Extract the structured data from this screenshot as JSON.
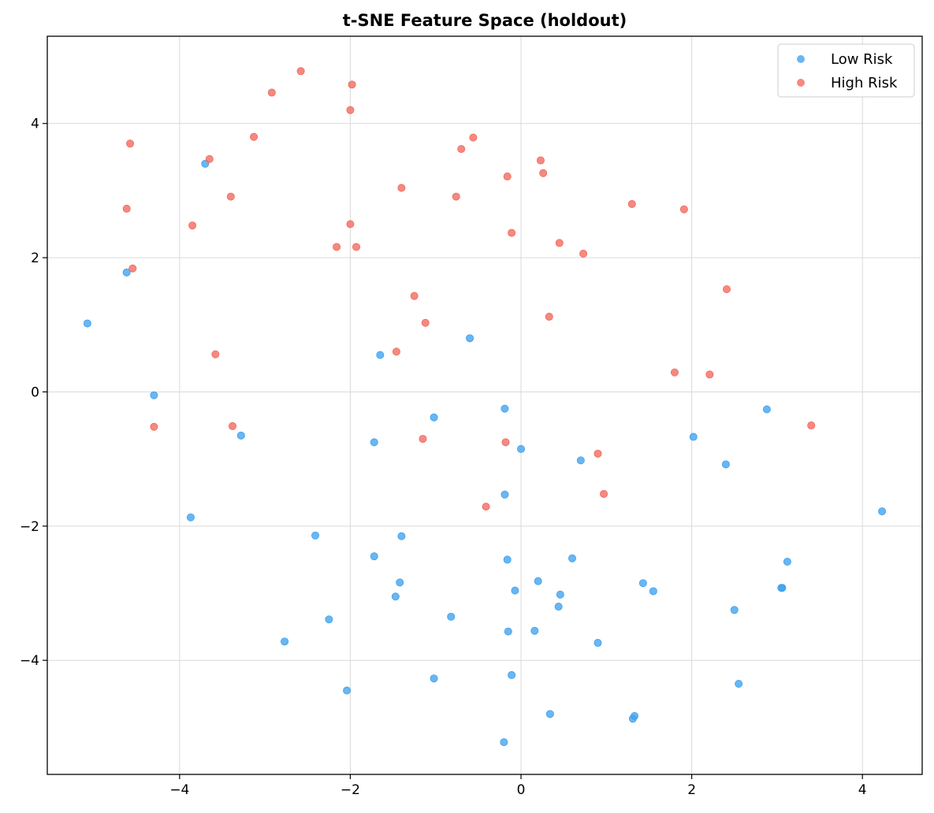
{
  "chart_data": {
    "type": "scatter",
    "title": "t-SNE Feature Space (holdout)",
    "xlabel": "",
    "ylabel": "",
    "xlim": [
      -5.55,
      4.7
    ],
    "ylim": [
      -5.7,
      5.3
    ],
    "xticks": [
      -4,
      -2,
      0,
      2,
      4
    ],
    "yticks": [
      -4,
      -2,
      0,
      2,
      4
    ],
    "grid": true,
    "legend": "top-right",
    "series": [
      {
        "name": "Low Risk",
        "color": "#3fa2ee",
        "points": [
          [
            -3.7,
            3.4
          ],
          [
            -4.62,
            1.78
          ],
          [
            -5.08,
            1.02
          ],
          [
            -4.3,
            -0.05
          ],
          [
            -3.28,
            -0.65
          ],
          [
            -1.65,
            0.55
          ],
          [
            -0.6,
            0.8
          ],
          [
            -1.02,
            -0.38
          ],
          [
            -1.72,
            -0.75
          ],
          [
            -0.19,
            -0.25
          ],
          [
            0.0,
            -0.85
          ],
          [
            0.7,
            -1.02
          ],
          [
            -0.19,
            -1.53
          ],
          [
            -3.87,
            -1.87
          ],
          [
            -2.41,
            -2.14
          ],
          [
            -1.4,
            -2.15
          ],
          [
            -1.72,
            -2.45
          ],
          [
            -0.16,
            -2.5
          ],
          [
            0.6,
            -2.48
          ],
          [
            -1.42,
            -2.84
          ],
          [
            0.2,
            -2.82
          ],
          [
            -0.07,
            -2.96
          ],
          [
            0.46,
            -3.02
          ],
          [
            -1.47,
            -3.05
          ],
          [
            0.44,
            -3.2
          ],
          [
            -2.25,
            -3.39
          ],
          [
            -0.82,
            -3.35
          ],
          [
            -0.15,
            -3.57
          ],
          [
            0.16,
            -3.56
          ],
          [
            -2.77,
            -3.72
          ],
          [
            0.9,
            -3.74
          ],
          [
            -1.02,
            -4.27
          ],
          [
            -0.11,
            -4.22
          ],
          [
            -2.04,
            -4.45
          ],
          [
            0.34,
            -4.8
          ],
          [
            1.31,
            -4.87
          ],
          [
            1.33,
            -4.83
          ],
          [
            -0.2,
            -5.22
          ],
          [
            1.43,
            -2.85
          ],
          [
            1.55,
            -2.97
          ],
          [
            2.02,
            -0.67
          ],
          [
            2.4,
            -1.08
          ],
          [
            2.88,
            -0.26
          ],
          [
            3.05,
            -2.92
          ],
          [
            3.06,
            -2.92
          ],
          [
            3.12,
            -2.53
          ],
          [
            2.5,
            -3.25
          ],
          [
            2.55,
            -4.35
          ],
          [
            4.23,
            -1.78
          ]
        ]
      },
      {
        "name": "High Risk",
        "color": "#f2685c",
        "points": [
          [
            -2.58,
            4.78
          ],
          [
            -1.98,
            4.58
          ],
          [
            -2.92,
            4.46
          ],
          [
            -2.0,
            4.2
          ],
          [
            -4.58,
            3.7
          ],
          [
            -3.13,
            3.8
          ],
          [
            -3.65,
            3.47
          ],
          [
            -0.56,
            3.79
          ],
          [
            -0.7,
            3.62
          ],
          [
            0.23,
            3.45
          ],
          [
            -0.16,
            3.21
          ],
          [
            0.26,
            3.26
          ],
          [
            -1.4,
            3.04
          ],
          [
            -0.76,
            2.91
          ],
          [
            -3.4,
            2.91
          ],
          [
            -4.62,
            2.73
          ],
          [
            -3.85,
            2.48
          ],
          [
            -2.0,
            2.5
          ],
          [
            -0.11,
            2.37
          ],
          [
            -2.16,
            2.16
          ],
          [
            -1.93,
            2.16
          ],
          [
            0.45,
            2.22
          ],
          [
            0.73,
            2.06
          ],
          [
            1.3,
            2.8
          ],
          [
            1.91,
            2.72
          ],
          [
            -4.55,
            1.84
          ],
          [
            2.41,
            1.53
          ],
          [
            -1.25,
            1.43
          ],
          [
            0.33,
            1.12
          ],
          [
            -1.12,
            1.03
          ],
          [
            -3.58,
            0.56
          ],
          [
            -1.46,
            0.6
          ],
          [
            1.8,
            0.29
          ],
          [
            2.21,
            0.26
          ],
          [
            -4.3,
            -0.52
          ],
          [
            -3.38,
            -0.51
          ],
          [
            -1.15,
            -0.7
          ],
          [
            -0.18,
            -0.75
          ],
          [
            0.9,
            -0.92
          ],
          [
            0.97,
            -1.52
          ],
          [
            -0.41,
            -1.71
          ],
          [
            3.4,
            -0.5
          ]
        ]
      }
    ]
  }
}
